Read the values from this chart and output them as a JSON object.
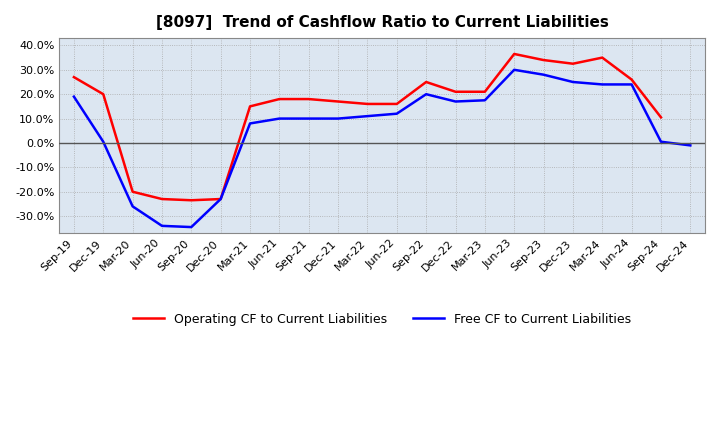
{
  "title": "[8097]  Trend of Cashflow Ratio to Current Liabilities",
  "x_labels": [
    "Sep-19",
    "Dec-19",
    "Mar-20",
    "Jun-20",
    "Sep-20",
    "Dec-20",
    "Mar-21",
    "Jun-21",
    "Sep-21",
    "Dec-21",
    "Mar-22",
    "Jun-22",
    "Sep-22",
    "Dec-22",
    "Mar-23",
    "Jun-23",
    "Sep-23",
    "Dec-23",
    "Mar-24",
    "Jun-24",
    "Sep-24",
    "Dec-24"
  ],
  "operating_cf": [
    27.0,
    20.0,
    -20.0,
    -23.0,
    -23.5,
    -23.0,
    15.0,
    18.0,
    18.0,
    17.0,
    16.0,
    16.0,
    25.0,
    21.0,
    21.0,
    36.5,
    34.0,
    32.5,
    35.0,
    26.0,
    10.5,
    null
  ],
  "free_cf": [
    19.0,
    0.5,
    -26.0,
    -34.0,
    -34.5,
    -23.0,
    8.0,
    10.0,
    10.0,
    10.0,
    11.0,
    12.0,
    20.0,
    17.0,
    17.5,
    30.0,
    28.0,
    25.0,
    24.0,
    24.0,
    0.5,
    -1.0
  ],
  "operating_color": "#ff0000",
  "free_color": "#0000ff",
  "ylim": [
    -37.0,
    43.0
  ],
  "yticks": [
    -30.0,
    -20.0,
    -10.0,
    0.0,
    10.0,
    20.0,
    30.0,
    40.0
  ],
  "plot_bg_color": "#dce6f1",
  "fig_bg_color": "#ffffff",
  "grid_color": "#aaaaaa",
  "border_color": "#888888",
  "zero_line_color": "#555555",
  "legend_op": "Operating CF to Current Liabilities",
  "legend_free": "Free CF to Current Liabilities",
  "title_fontsize": 11,
  "tick_fontsize": 8,
  "legend_fontsize": 9,
  "linewidth": 1.8
}
